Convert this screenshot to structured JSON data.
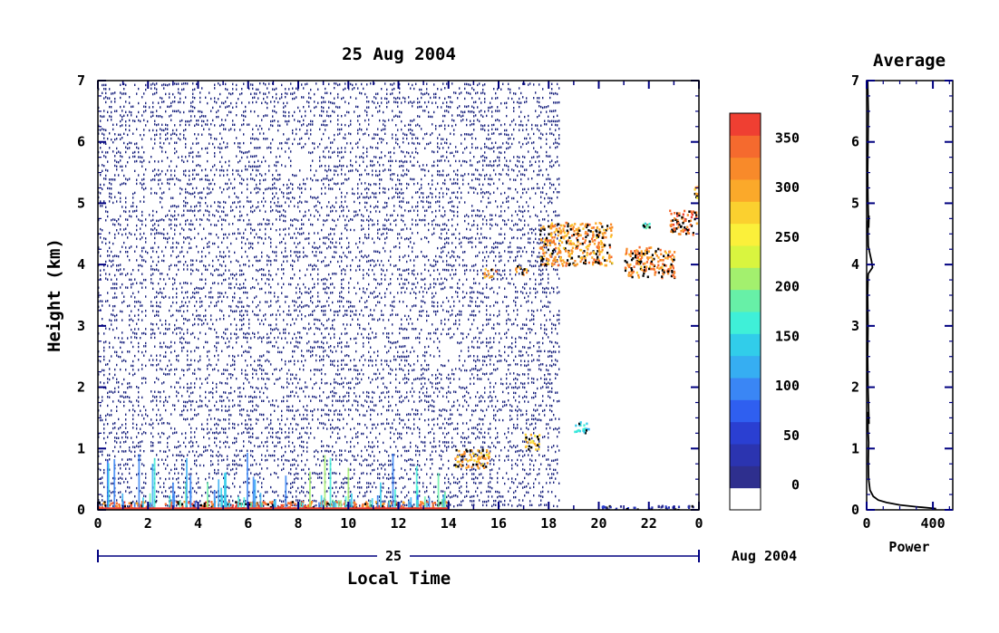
{
  "chart_data": [
    {
      "type": "heatmap",
      "title": "25 Aug 2004",
      "xlabel": "Local Time",
      "ylabel": "Height (km)",
      "x_ticks": [
        "0",
        "2",
        "4",
        "6",
        "8",
        "10",
        "12",
        "14",
        "16",
        "18",
        "20",
        "22",
        "0"
      ],
      "y_ticks": [
        "0",
        "1",
        "2",
        "3",
        "4",
        "5",
        "6",
        "7"
      ],
      "xlim_hours": [
        0,
        24
      ],
      "ylim_km": [
        0,
        7
      ],
      "date_axis": {
        "day_label": "25",
        "month_year_label": "Aug 2004"
      },
      "grid": false,
      "noise_background": {
        "start_hour": 0,
        "end_hour": 18.4,
        "color": "#1a237e"
      },
      "features": [
        {
          "name": "surface layer",
          "hours": [
            0,
            14
          ],
          "km": [
            0,
            0.15
          ],
          "level": 370
        },
        {
          "name": "low cloud",
          "hours": [
            14.2,
            15.6
          ],
          "km": [
            0.7,
            1.0
          ],
          "level": 330
        },
        {
          "name": "low cloud",
          "hours": [
            17.0,
            17.6
          ],
          "km": [
            1.0,
            1.25
          ],
          "level": 310
        },
        {
          "name": "low cloud",
          "hours": [
            19.0,
            19.6
          ],
          "km": [
            1.25,
            1.45
          ],
          "level": 180
        },
        {
          "name": "mid cloud",
          "hours": [
            15.4,
            15.9
          ],
          "km": [
            3.8,
            3.95
          ],
          "level": 340
        },
        {
          "name": "mid cloud",
          "hours": [
            16.6,
            17.1
          ],
          "km": [
            3.85,
            4.0
          ],
          "level": 330
        },
        {
          "name": "mid cloud",
          "hours": [
            17.6,
            20.5
          ],
          "km": [
            4.0,
            4.7
          ],
          "level": 340
        },
        {
          "name": "mid cloud",
          "hours": [
            21.0,
            23.0
          ],
          "km": [
            3.8,
            4.3
          ],
          "level": 350
        },
        {
          "name": "mid cloud",
          "hours": [
            22.8,
            23.9
          ],
          "km": [
            4.5,
            4.9
          ],
          "level": 360
        },
        {
          "name": "high cloud",
          "hours": [
            21.7,
            22.0
          ],
          "km": [
            4.6,
            4.7
          ],
          "level": 200
        },
        {
          "name": "high cloud",
          "hours": [
            23.8,
            24.0
          ],
          "km": [
            5.1,
            5.3
          ],
          "level": 320
        },
        {
          "name": "surface echo",
          "hours": [
            20.0,
            24.0
          ],
          "km": [
            0.0,
            0.08
          ],
          "level": 60
        }
      ]
    },
    {
      "type": "colorbar",
      "tick_labels": [
        "0",
        "50",
        "100",
        "150",
        "200",
        "250",
        "300",
        "350"
      ],
      "range": [
        -25,
        375
      ],
      "colors": [
        "#ffffff",
        "#2e2f8e",
        "#2b34b0",
        "#2a3fd2",
        "#2f5ff0",
        "#3a86f5",
        "#36aef2",
        "#31cdea",
        "#3ff0d8",
        "#67f0a7",
        "#a3f06e",
        "#d9f53f",
        "#fbf03a",
        "#fbd02f",
        "#fba92a",
        "#f88a2a",
        "#f56a2e",
        "#ef3f32"
      ]
    },
    {
      "type": "line",
      "title": "Average",
      "xlabel": "Power",
      "x_ticks": [
        "0",
        "400"
      ],
      "y_ticks": [
        "0",
        "1",
        "2",
        "3",
        "4",
        "5",
        "6",
        "7"
      ],
      "xlim": [
        0,
        520
      ],
      "ylim": [
        0,
        7
      ],
      "x": [
        420,
        300,
        200,
        120,
        70,
        40,
        20,
        12,
        10,
        12,
        8,
        8,
        14,
        8,
        6,
        8,
        6,
        8,
        10,
        35,
        30,
        22,
        10,
        8,
        8,
        14,
        12,
        8,
        6,
        8,
        10,
        6
      ],
      "y": [
        0.02,
        0.05,
        0.08,
        0.12,
        0.16,
        0.22,
        0.32,
        0.5,
        0.8,
        1.1,
        1.3,
        1.6,
        1.4,
        2.0,
        2.5,
        3.0,
        3.5,
        3.8,
        3.85,
        3.95,
        4.05,
        4.15,
        4.3,
        4.5,
        4.7,
        4.8,
        4.6,
        5.0,
        5.5,
        6.0,
        6.5,
        7.0
      ]
    }
  ]
}
